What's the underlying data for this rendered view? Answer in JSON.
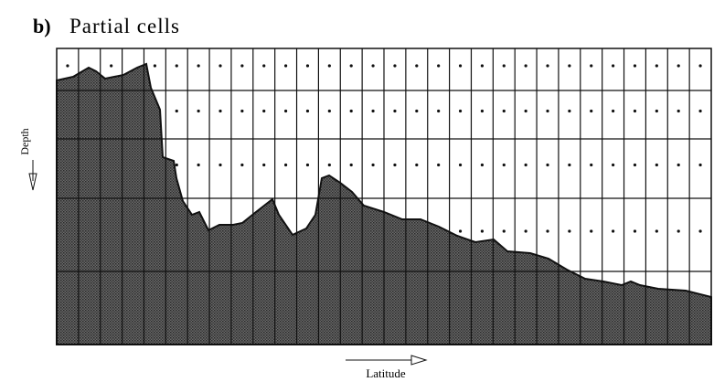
{
  "panel_label": "b)",
  "title": "Partial cells",
  "y_axis_label": "Depth",
  "x_axis_label": "Latitude"
}
